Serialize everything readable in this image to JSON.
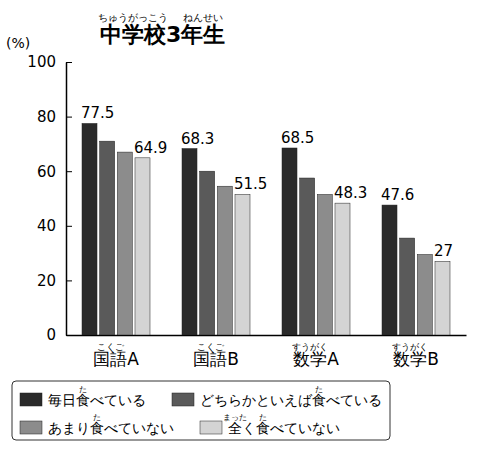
{
  "chart_data": {
    "type": "bar",
    "title": "中学校3年生",
    "title_ruby": [
      {
        "text": "ちゅうがっこう",
        "over": "中学校"
      },
      {
        "text": "ねんせい",
        "over": "年生"
      }
    ],
    "ylabel": "(%)",
    "categories": [
      "国語A",
      "国語B",
      "数学A",
      "数学B"
    ],
    "category_ruby": [
      {
        "text": "こくご",
        "over": "国語"
      },
      {
        "text": "こくご",
        "over": "国語"
      },
      {
        "text": "すうがく",
        "over": "数学"
      },
      {
        "text": "すうがく",
        "over": "数学"
      }
    ],
    "series": [
      {
        "name": "毎日食べている",
        "ruby": [
          {
            "text": "た",
            "over": "食"
          }
        ],
        "color": "#2a2a2a",
        "data_labels": true,
        "values": [
          77.5,
          68.3,
          68.5,
          47.6
        ]
      },
      {
        "name": "どちらかといえば食べている",
        "ruby": [
          {
            "text": "た",
            "over": "食"
          }
        ],
        "color": "#5a5a5a",
        "data_labels": false,
        "values": [
          71.0,
          60.0,
          57.5,
          35.5
        ]
      },
      {
        "name": "あまり食べていない",
        "ruby": [
          {
            "text": "た",
            "over": "食"
          }
        ],
        "color": "#8c8c8c",
        "data_labels": false,
        "values": [
          67.0,
          54.5,
          51.5,
          29.5
        ]
      },
      {
        "name": "全く食べていない",
        "ruby": [
          {
            "text": "まった",
            "over": "全"
          },
          {
            "text": "た",
            "over": "食"
          }
        ],
        "color": "#d4d4d4",
        "data_labels": true,
        "values": [
          64.9,
          51.5,
          48.3,
          27
        ]
      }
    ],
    "ylim": [
      0,
      100
    ],
    "yticks": [
      0,
      20,
      40,
      60,
      80,
      100
    ],
    "grid": false,
    "legend": "bottom"
  }
}
